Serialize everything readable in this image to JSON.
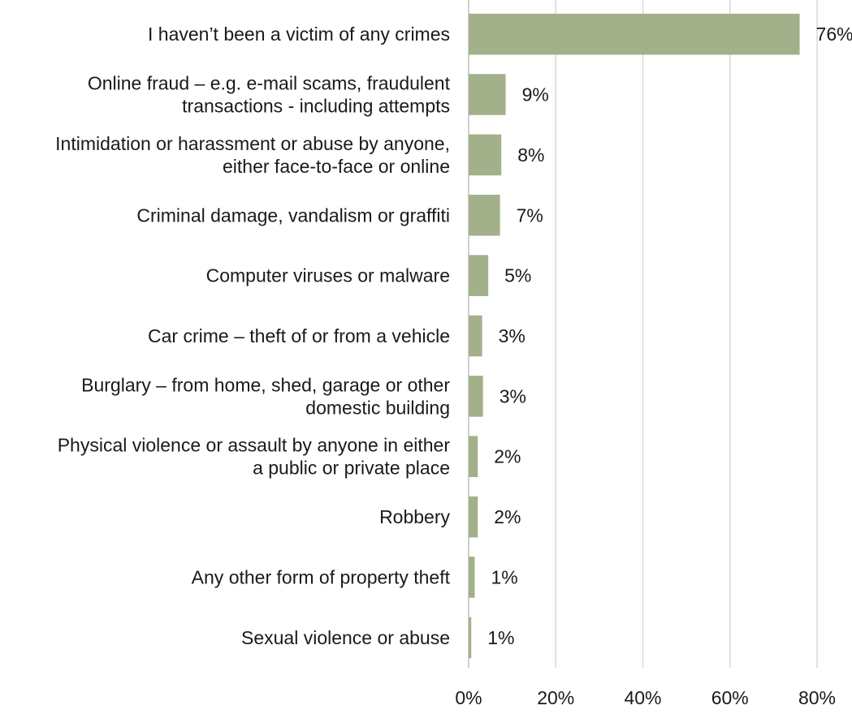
{
  "chart_data": {
    "type": "bar",
    "orientation": "horizontal",
    "categories": [
      [
        "I haven’t been a victim of any crimes"
      ],
      [
        "Online fraud – e.g. e-mail scams, fraudulent",
        "transactions - including attempts"
      ],
      [
        "Intimidation or harassment or abuse by anyone,",
        "either face-to-face or online"
      ],
      [
        "Criminal damage, vandalism or graffiti"
      ],
      [
        "Computer viruses or malware"
      ],
      [
        "Car crime – theft of or from a vehicle"
      ],
      [
        "Burglary – from home, shed, garage or other",
        "domestic building"
      ],
      [
        "Physical violence or assault by anyone in either",
        "a public or private place"
      ],
      [
        "Robbery"
      ],
      [
        "Any other form of property theft"
      ],
      [
        "Sexual violence or abuse"
      ]
    ],
    "values": [
      76,
      8.5,
      7.5,
      7.2,
      4.5,
      3.1,
      3.3,
      2.1,
      2.1,
      1.4,
      0.6
    ],
    "value_labels": [
      "76%",
      "9%",
      "8%",
      "7%",
      "5%",
      "3%",
      "3%",
      "2%",
      "2%",
      "1%",
      "1%"
    ],
    "xlim": [
      0,
      80
    ],
    "xticks": [
      0,
      20,
      40,
      60,
      80
    ],
    "xtick_labels": [
      "0%",
      "20%",
      "40%",
      "60%",
      "80%"
    ],
    "grid": true,
    "bar_color": "#a3b18a",
    "title": "",
    "xlabel": "",
    "ylabel": ""
  }
}
